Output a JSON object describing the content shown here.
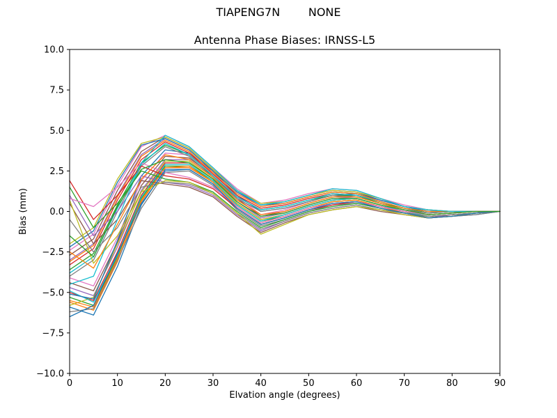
{
  "chart_data": {
    "type": "line",
    "suptitle": "TIAPENG7N        NONE",
    "title": "Antenna Phase Biases: IRNSS-L5",
    "xlabel": "Elvation angle (degrees)",
    "ylabel": "Bias (mm)",
    "xlim": [
      0,
      90
    ],
    "ylim": [
      -10,
      10
    ],
    "xticks": [
      0,
      10,
      20,
      30,
      40,
      50,
      60,
      70,
      80,
      90
    ],
    "yticks": [
      -10,
      -7.5,
      -5,
      -2.5,
      0,
      2.5,
      5,
      7.5,
      10
    ],
    "grid": false,
    "legend": "none",
    "x": [
      0,
      5,
      10,
      15,
      20,
      25,
      30,
      35,
      40,
      45,
      50,
      55,
      60,
      65,
      70,
      75,
      80,
      85,
      90
    ],
    "palette": [
      "#1f77b4",
      "#ff7f0e",
      "#2ca02c",
      "#d62728",
      "#9467bd",
      "#8c564b",
      "#e377c2",
      "#7f7f7f",
      "#bcbd22",
      "#17becf"
    ],
    "series": [
      {
        "values": [
          -5.9,
          -6.4,
          -3.4,
          0.4,
          2.6,
          2.6,
          1.7,
          0.2,
          -0.8,
          -0.4,
          0.1,
          0.5,
          0.6,
          0.2,
          -0.1,
          -0.4,
          -0.3,
          -0.2,
          0.0
        ]
      },
      {
        "values": [
          -5.6,
          -6.1,
          -3.1,
          0.6,
          2.7,
          2.7,
          1.8,
          0.3,
          -0.7,
          -0.3,
          0.2,
          0.6,
          0.7,
          0.3,
          0.0,
          -0.4,
          -0.3,
          -0.1,
          0.0
        ]
      },
      {
        "values": [
          -5.3,
          -5.8,
          -2.8,
          0.8,
          2.8,
          2.8,
          1.9,
          0.4,
          -0.6,
          -0.3,
          0.2,
          0.6,
          0.7,
          0.3,
          0.0,
          -0.3,
          -0.2,
          -0.1,
          0.0
        ]
      },
      {
        "values": [
          -5.0,
          -5.5,
          -2.5,
          1.0,
          3.0,
          3.0,
          2.0,
          0.5,
          -0.5,
          -0.2,
          0.3,
          0.7,
          0.8,
          0.4,
          0.0,
          -0.3,
          -0.2,
          -0.1,
          0.0
        ]
      },
      {
        "values": [
          -4.7,
          -5.2,
          -2.2,
          1.3,
          3.2,
          3.2,
          2.1,
          0.6,
          -0.4,
          -0.1,
          0.4,
          0.8,
          0.9,
          0.5,
          0.1,
          -0.2,
          -0.1,
          0.0,
          0.0
        ]
      },
      {
        "values": [
          -4.4,
          -4.9,
          -1.9,
          1.6,
          3.4,
          3.3,
          2.2,
          0.8,
          -0.3,
          0.0,
          0.5,
          0.9,
          1.0,
          0.5,
          0.1,
          -0.2,
          -0.1,
          0.0,
          0.0
        ]
      },
      {
        "values": [
          -4.1,
          -4.6,
          -1.6,
          1.9,
          3.6,
          3.5,
          2.4,
          0.9,
          -0.2,
          0.1,
          0.6,
          1.0,
          1.0,
          0.6,
          0.2,
          -0.1,
          0.0,
          0.0,
          0.0
        ]
      },
      {
        "values": [
          -6.2,
          -6.0,
          -3.0,
          0.2,
          2.4,
          2.5,
          1.6,
          0.1,
          -0.9,
          -0.5,
          0.0,
          0.4,
          0.5,
          0.2,
          -0.1,
          -0.4,
          -0.3,
          -0.2,
          0.0
        ]
      },
      {
        "values": [
          -5.8,
          -5.3,
          -2.0,
          1.2,
          3.1,
          3.1,
          2.0,
          0.5,
          -0.5,
          -0.2,
          0.3,
          0.7,
          0.8,
          0.4,
          0.0,
          -0.3,
          -0.2,
          -0.1,
          0.0
        ]
      },
      {
        "values": [
          -4.9,
          -5.6,
          -2.7,
          0.9,
          2.9,
          2.9,
          1.9,
          0.4,
          -0.6,
          -0.2,
          0.3,
          0.7,
          0.8,
          0.4,
          0.0,
          -0.3,
          -0.2,
          -0.1,
          0.0
        ]
      },
      {
        "values": [
          -5.1,
          -5.4,
          -1.8,
          2.2,
          3.8,
          3.6,
          2.5,
          1.0,
          0.0,
          0.2,
          0.6,
          1.0,
          1.1,
          0.6,
          0.2,
          -0.1,
          0.0,
          0.0,
          0.0
        ]
      },
      {
        "values": [
          -5.5,
          -5.9,
          -2.9,
          0.7,
          2.7,
          2.8,
          1.8,
          0.3,
          -0.7,
          -0.3,
          0.2,
          0.6,
          0.7,
          0.3,
          -0.1,
          -0.4,
          -0.2,
          -0.1,
          0.0
        ]
      },
      {
        "values": [
          -3.6,
          -2.6,
          0.4,
          3.0,
          4.1,
          3.5,
          2.2,
          0.9,
          0.1,
          0.3,
          0.7,
          1.0,
          1.0,
          0.5,
          0.2,
          -0.1,
          0.0,
          0.0,
          0.0
        ]
      },
      {
        "values": [
          -3.3,
          -2.3,
          0.7,
          3.2,
          4.3,
          3.6,
          2.3,
          1.0,
          0.2,
          0.4,
          0.8,
          1.1,
          1.0,
          0.6,
          0.2,
          0.0,
          0.0,
          0.0,
          0.0
        ]
      },
      {
        "values": [
          -3.0,
          -2.0,
          1.0,
          3.5,
          4.5,
          3.8,
          2.5,
          1.2,
          0.3,
          0.5,
          0.9,
          1.2,
          1.1,
          0.7,
          0.3,
          0.0,
          0.0,
          0.0,
          0.0
        ]
      },
      {
        "values": [
          -2.7,
          -1.7,
          1.3,
          3.7,
          4.6,
          3.9,
          2.6,
          1.3,
          0.4,
          0.6,
          1.0,
          1.3,
          1.2,
          0.7,
          0.3,
          0.1,
          0.0,
          0.0,
          0.0
        ]
      },
      {
        "values": [
          -2.4,
          -1.4,
          1.6,
          4.0,
          4.7,
          4.0,
          2.7,
          1.4,
          0.5,
          0.7,
          1.1,
          1.4,
          1.3,
          0.8,
          0.4,
          0.1,
          0.0,
          0.0,
          0.0
        ]
      },
      {
        "values": [
          -4.0,
          -3.0,
          0.0,
          2.8,
          4.0,
          3.4,
          2.1,
          0.8,
          0.0,
          0.2,
          0.6,
          1.0,
          0.9,
          0.5,
          0.1,
          -0.1,
          0.0,
          0.0,
          0.0
        ]
      },
      {
        "values": [
          -2.0,
          -1.0,
          2.0,
          4.2,
          4.6,
          3.9,
          2.6,
          1.3,
          0.5,
          0.6,
          1.0,
          1.3,
          1.2,
          0.8,
          0.3,
          0.1,
          0.0,
          0.0,
          0.0
        ]
      },
      {
        "values": [
          -3.8,
          -2.8,
          0.2,
          2.9,
          4.2,
          3.5,
          2.2,
          0.9,
          0.1,
          0.3,
          0.7,
          1.1,
          1.0,
          0.6,
          0.2,
          0.0,
          0.0,
          0.0,
          0.0
        ]
      },
      {
        "values": [
          -2.2,
          -1.2,
          1.8,
          4.1,
          4.5,
          3.8,
          2.5,
          1.2,
          0.4,
          0.5,
          0.9,
          1.2,
          1.1,
          0.7,
          0.3,
          0.0,
          0.0,
          0.0,
          0.0
        ]
      },
      {
        "values": [
          -3.1,
          -2.1,
          0.9,
          3.4,
          4.4,
          3.7,
          2.4,
          1.1,
          0.3,
          0.5,
          0.9,
          1.2,
          1.1,
          0.6,
          0.2,
          0.0,
          0.0,
          0.0,
          0.0
        ]
      },
      {
        "values": [
          1.5,
          -1.0,
          0.5,
          2.5,
          2.0,
          1.8,
          1.2,
          0.0,
          -1.0,
          -0.5,
          0.0,
          0.3,
          0.5,
          0.2,
          -0.1,
          -0.3,
          -0.2,
          -0.1,
          0.0
        ]
      },
      {
        "values": [
          1.9,
          -0.5,
          1.0,
          2.8,
          2.2,
          2.0,
          1.4,
          0.2,
          -0.8,
          -0.4,
          0.1,
          0.4,
          0.6,
          0.3,
          0.0,
          -0.2,
          -0.1,
          0.0,
          0.0
        ]
      },
      {
        "values": [
          1.0,
          -1.5,
          0.0,
          2.2,
          1.8,
          1.6,
          1.0,
          -0.2,
          -1.2,
          -0.6,
          -0.1,
          0.2,
          0.4,
          0.1,
          -0.2,
          -0.4,
          -0.2,
          -0.1,
          0.0
        ]
      },
      {
        "values": [
          0.5,
          -2.0,
          -0.5,
          1.9,
          1.7,
          1.5,
          0.9,
          -0.3,
          -1.3,
          -0.7,
          -0.2,
          0.1,
          0.3,
          0.0,
          -0.2,
          -0.4,
          -0.3,
          -0.1,
          0.0
        ]
      },
      {
        "values": [
          0.8,
          0.3,
          1.5,
          3.0,
          2.4,
          2.1,
          1.5,
          0.3,
          -0.7,
          -0.3,
          0.2,
          0.5,
          0.6,
          0.3,
          0.0,
          -0.2,
          -0.1,
          0.0,
          0.0
        ]
      },
      {
        "values": [
          -0.5,
          -2.5,
          -1.0,
          1.5,
          1.8,
          1.7,
          1.1,
          -0.1,
          -1.1,
          -0.6,
          -0.1,
          0.2,
          0.4,
          0.1,
          -0.1,
          -0.3,
          -0.2,
          -0.1,
          0.0
        ]
      },
      {
        "values": [
          0.7,
          -3.2,
          -1.5,
          1.2,
          1.9,
          1.8,
          1.1,
          -0.1,
          -1.4,
          -0.8,
          -0.2,
          0.1,
          0.3,
          0.1,
          -0.2,
          -0.4,
          -0.3,
          -0.1,
          0.0
        ]
      },
      {
        "values": [
          -4.5,
          -4.0,
          -0.5,
          3.0,
          4.7,
          4.0,
          2.7,
          1.3,
          0.4,
          0.6,
          1.0,
          1.4,
          1.3,
          0.8,
          0.3,
          0.1,
          0.0,
          0.0,
          0.0
        ]
      },
      {
        "values": [
          -6.5,
          -5.8,
          -2.6,
          0.5,
          2.5,
          2.6,
          1.7,
          0.2,
          -0.8,
          -0.4,
          0.1,
          0.5,
          0.6,
          0.2,
          -0.1,
          -0.4,
          -0.3,
          -0.1,
          0.0
        ]
      },
      {
        "values": [
          -2.5,
          -3.5,
          -0.8,
          2.0,
          3.5,
          3.2,
          2.1,
          0.7,
          -0.2,
          0.0,
          0.5,
          0.9,
          0.9,
          0.5,
          0.1,
          -0.2,
          -0.1,
          0.0,
          0.0
        ]
      },
      {
        "values": [
          -1.5,
          -2.8,
          0.3,
          2.6,
          3.2,
          3.0,
          2.0,
          0.6,
          -0.3,
          -0.1,
          0.4,
          0.8,
          0.8,
          0.4,
          0.1,
          -0.2,
          -0.1,
          0.0,
          0.0
        ]
      }
    ]
  }
}
